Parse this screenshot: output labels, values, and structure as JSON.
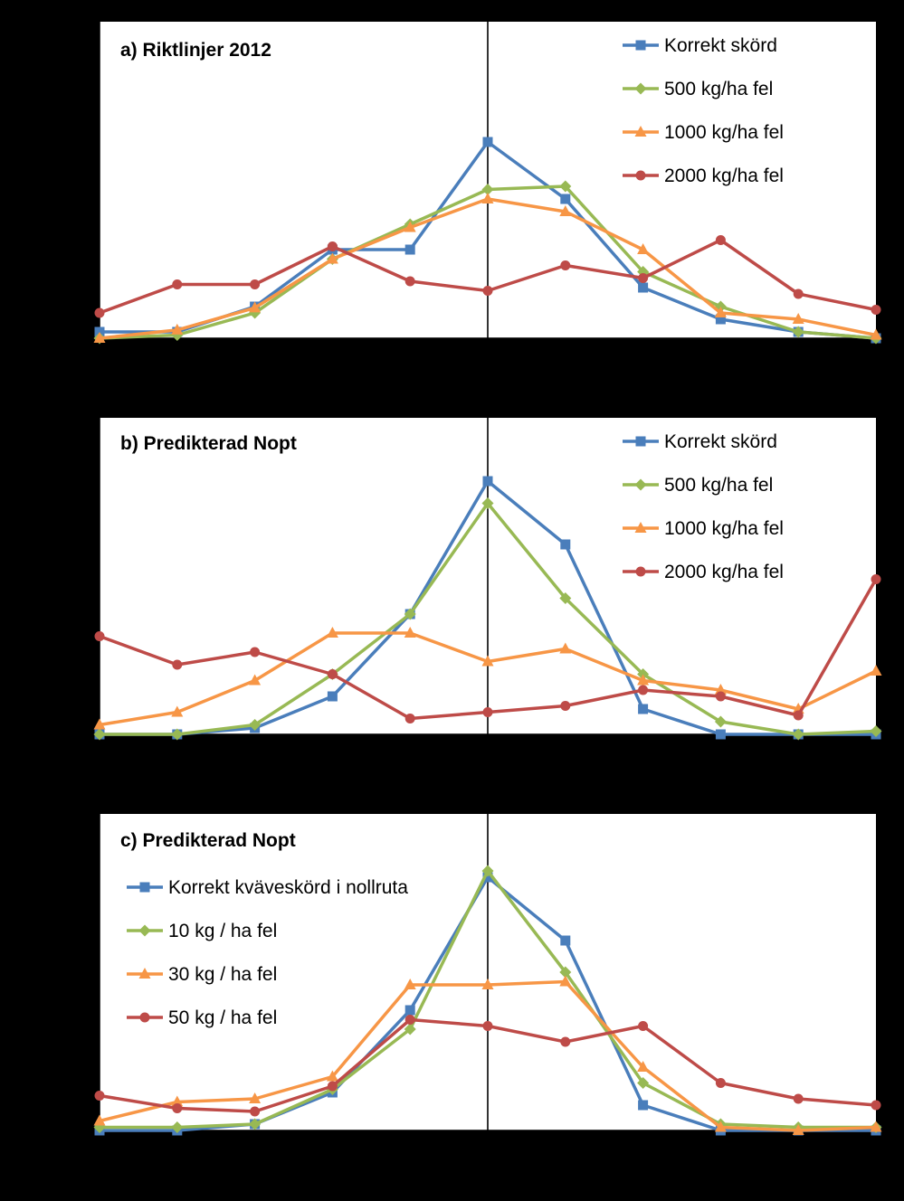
{
  "chart_data": [
    {
      "type": "line",
      "title": "a) Riktlinjer 2012",
      "x": [
        -5,
        -4,
        -3,
        -2,
        -1,
        0,
        1,
        2,
        3,
        4,
        5
      ],
      "ylim": [
        0,
        50
      ],
      "series": [
        {
          "name": "Korrekt skörd",
          "marker": "square",
          "color": "#4a7ebb",
          "values": [
            1,
            1,
            5,
            14,
            14,
            31,
            22,
            8,
            3,
            1,
            0
          ]
        },
        {
          "name": "500 kg/ha fel",
          "marker": "diamond",
          "color": "#98b954",
          "values": [
            0,
            0.5,
            4,
            12.5,
            18,
            23.5,
            24,
            10.5,
            5,
            1,
            0
          ]
        },
        {
          "name": "1000 kg/ha fel",
          "marker": "triangle",
          "color": "#f79646",
          "values": [
            0,
            1.3,
            4.8,
            12.5,
            17.5,
            22,
            20,
            14,
            4,
            3,
            0.5
          ]
        },
        {
          "name": "2000 kg/ha fel",
          "marker": "circle",
          "color": "#be4b48",
          "values": [
            4,
            8.5,
            8.5,
            14.5,
            9,
            7.5,
            11.5,
            9.5,
            15.5,
            7,
            4.5
          ]
        }
      ]
    },
    {
      "type": "line",
      "title": "b) Predikterad Nopt",
      "x": [
        -5,
        -4,
        -3,
        -2,
        -1,
        0,
        1,
        2,
        3,
        4,
        5
      ],
      "ylim": [
        0,
        50
      ],
      "series": [
        {
          "name": "Korrekt skörd",
          "marker": "square",
          "color": "#4a7ebb",
          "values": [
            0,
            0,
            1,
            6,
            19,
            40,
            30,
            4,
            0,
            0,
            0
          ]
        },
        {
          "name": "500 kg/ha fel",
          "marker": "diamond",
          "color": "#98b954",
          "values": [
            0,
            0,
            1.5,
            9.5,
            19,
            36.5,
            21.5,
            9.5,
            2,
            0,
            0.5
          ]
        },
        {
          "name": "1000 kg/ha fel",
          "marker": "triangle",
          "color": "#f79646",
          "values": [
            1.5,
            3.5,
            8.5,
            16,
            16,
            11.5,
            13.5,
            8.5,
            7,
            4,
            10
          ]
        },
        {
          "name": "2000 kg/ha fel",
          "marker": "circle",
          "color": "#be4b48",
          "values": [
            15.5,
            11,
            13,
            9.5,
            2.5,
            3.5,
            4.5,
            7,
            6,
            3,
            24.5
          ]
        }
      ]
    },
    {
      "type": "line",
      "title": "c) Predikterad Nopt",
      "x": [
        -5,
        -4,
        -3,
        -2,
        -1,
        0,
        1,
        2,
        3,
        4,
        5
      ],
      "ylim": [
        0,
        50
      ],
      "series": [
        {
          "name": "Korrekt kväveskörd i nollruta",
          "marker": "square",
          "color": "#4a7ebb",
          "values": [
            0,
            0,
            1,
            6,
            19,
            40,
            30,
            4,
            0,
            0,
            0
          ]
        },
        {
          "name": "10 kg / ha fel",
          "marker": "diamond",
          "color": "#98b954",
          "values": [
            0.5,
            0.5,
            1,
            6.5,
            16,
            41,
            25,
            7.5,
            1,
            0.5,
            0.5
          ]
        },
        {
          "name": "30 kg / ha fel",
          "marker": "triangle",
          "color": "#f79646",
          "values": [
            1.5,
            4.5,
            5,
            8.5,
            23,
            23,
            23.5,
            10,
            0.5,
            0,
            0.5
          ]
        },
        {
          "name": "50 kg / ha fel",
          "marker": "circle",
          "color": "#be4b48",
          "values": [
            5.5,
            3.5,
            3,
            7,
            17.5,
            16.5,
            14,
            16.5,
            7.5,
            5,
            4
          ]
        }
      ]
    }
  ]
}
